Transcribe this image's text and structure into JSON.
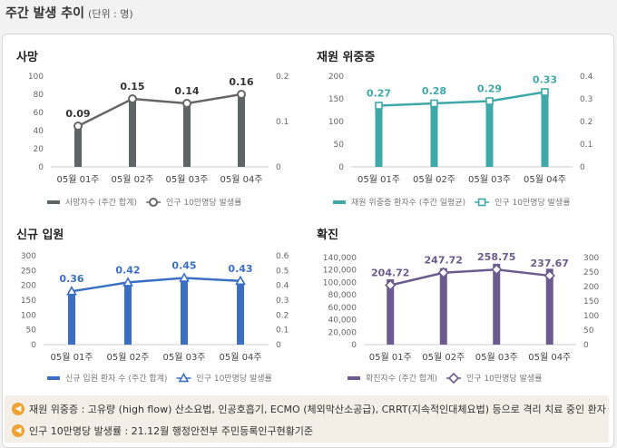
{
  "header": {
    "title": "주간 발생 추이",
    "unit": "(단위 : 명)"
  },
  "chart_data": [
    {
      "type": "bar",
      "title": "사망",
      "categories": [
        "05월 01주",
        "05월 02주",
        "05월 03주",
        "05월 04주"
      ],
      "series": [
        {
          "name": "사망자수 (주간 합계)",
          "type": "bar",
          "axis": "left",
          "values": [
            47,
            75,
            70,
            80
          ]
        },
        {
          "name": "인구 10만명당 발생률",
          "type": "line",
          "axis": "right",
          "values": [
            0.09,
            0.15,
            0.14,
            0.16
          ],
          "labels": [
            "0.09",
            "0.15",
            "0.14",
            "0.16"
          ]
        }
      ],
      "ylim_left": [
        0,
        100
      ],
      "yticks_left": [
        "0",
        "20",
        "40",
        "60",
        "80",
        "100"
      ],
      "ylim_right": [
        0,
        0.2
      ],
      "yticks_right": [
        "0",
        "0.1",
        "0.2"
      ],
      "colors": {
        "bar": "#5d6664",
        "line": "#666666"
      },
      "marker": "circle",
      "legend_position": "bottom"
    },
    {
      "type": "bar",
      "title": "재원 위중증",
      "categories": [
        "05월 01주",
        "05월 02주",
        "05월 03주",
        "05월 04주"
      ],
      "series": [
        {
          "name": "재원 위중증 환자수 (주간 일평균)",
          "type": "bar",
          "axis": "left",
          "values": [
            140,
            145,
            148,
            165
          ]
        },
        {
          "name": "인구 10만명당 발생률",
          "type": "line",
          "axis": "right",
          "values": [
            0.27,
            0.28,
            0.29,
            0.33
          ],
          "labels": [
            "0.27",
            "0.28",
            "0.29",
            "0.33"
          ]
        }
      ],
      "ylim_left": [
        0,
        200
      ],
      "yticks_left": [
        "0",
        "50",
        "100",
        "150",
        "200"
      ],
      "ylim_right": [
        0,
        0.4
      ],
      "yticks_right": [
        "0",
        "0.1",
        "0.2",
        "0.3",
        "0.4"
      ],
      "colors": {
        "bar": "#3fa8a8",
        "line": "#3fa8a8"
      },
      "marker": "square",
      "legend_position": "bottom"
    },
    {
      "type": "bar",
      "title": "신규 입원",
      "categories": [
        "05월 01주",
        "05월 02주",
        "05월 03주",
        "05월 04주"
      ],
      "series": [
        {
          "name": "신규 입원 환자 수 (주간 합계)",
          "type": "bar",
          "axis": "left",
          "values": [
            180,
            210,
            225,
            215
          ]
        },
        {
          "name": "인구 10만명당 발생률",
          "type": "line",
          "axis": "right",
          "values": [
            0.36,
            0.42,
            0.45,
            0.43
          ],
          "labels": [
            "0.36",
            "0.42",
            "0.45",
            "0.43"
          ]
        }
      ],
      "ylim_left": [
        0,
        300
      ],
      "yticks_left": [
        "0",
        "50",
        "100",
        "150",
        "200",
        "250",
        "300"
      ],
      "ylim_right": [
        0,
        0.6
      ],
      "yticks_right": [
        "0",
        "0.1",
        "0.2",
        "0.3",
        "0.4",
        "0.5",
        "0.6"
      ],
      "colors": {
        "bar": "#3b6fc4",
        "line": "#3b6fc4"
      },
      "marker": "triangle",
      "legend_position": "bottom"
    },
    {
      "type": "bar",
      "title": "확진",
      "categories": [
        "05월 01주",
        "05월 02주",
        "05월 03주",
        "05월 04주"
      ],
      "series": [
        {
          "name": "확진자수 (주간 합계)",
          "type": "bar",
          "axis": "left",
          "values": [
            105000,
            123000,
            130000,
            122000
          ]
        },
        {
          "name": "인구 10만명당 발생률",
          "type": "line",
          "axis": "right",
          "values": [
            204.72,
            247.72,
            258.75,
            237.67
          ],
          "labels": [
            "204.72",
            "247.72",
            "258.75",
            "237.67"
          ]
        }
      ],
      "ylim_left": [
        0,
        140000
      ],
      "yticks_left": [
        "0",
        "20,000",
        "40,000",
        "60,000",
        "80,000",
        "100,000",
        "120,000",
        "140,000"
      ],
      "ylim_right": [
        0,
        300
      ],
      "yticks_right": [
        "0",
        "50",
        "100",
        "150",
        "200",
        "250",
        "300"
      ],
      "colors": {
        "bar": "#6b5b8e",
        "line": "#6b5b8e"
      },
      "marker": "diamond",
      "legend_position": "bottom"
    }
  ],
  "notes": [
    "재원 위중증 : 고유량 (high flow) 산소요법, 인공호흡기, ECMO (체외막산소공급), CRRT(지속적인대체요법) 등으로 격리 치료 중인 환자",
    "인구 10만명당 발생률 : 21.12월 행정안전부 주민등록인구현황기준"
  ]
}
